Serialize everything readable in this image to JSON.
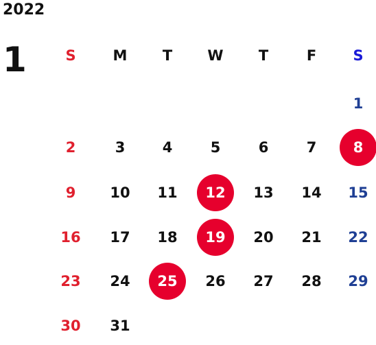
{
  "calendar": {
    "year": "2022",
    "month": "1",
    "weekdays": [
      "S",
      "M",
      "T",
      "W",
      "T",
      "F",
      "S"
    ],
    "weeks": [
      [
        "",
        "",
        "",
        "",
        "",
        "",
        "1"
      ],
      [
        "2",
        "3",
        "4",
        "5",
        "6",
        "7",
        "8"
      ],
      [
        "9",
        "10",
        "11",
        "12",
        "13",
        "14",
        "15"
      ],
      [
        "16",
        "17",
        "18",
        "19",
        "20",
        "21",
        "22"
      ],
      [
        "23",
        "24",
        "25",
        "26",
        "27",
        "28",
        "29"
      ],
      [
        "30",
        "31",
        "",
        "",
        "",
        "",
        ""
      ]
    ],
    "highlighted_days": [
      "8",
      "12",
      "19",
      "25"
    ]
  },
  "colors": {
    "sunday": "#e0202e",
    "saturday": "#1f3f94",
    "saturday_header": "#1a1ad8",
    "highlight_circle": "#e6002d",
    "text": "#111111"
  }
}
